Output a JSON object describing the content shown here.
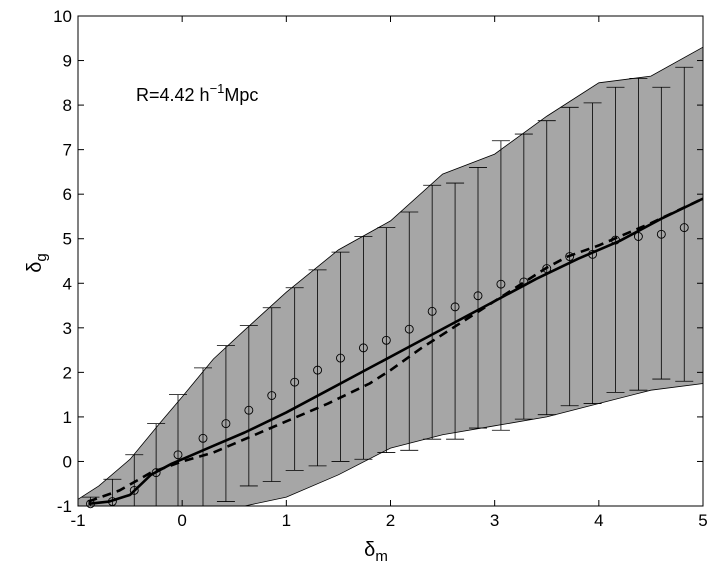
{
  "chart_data": {
    "type": "scatter",
    "xlim": [
      -1,
      5
    ],
    "ylim": [
      -1,
      10
    ],
    "xticks": [
      "-1",
      "0",
      "1",
      "2",
      "3",
      "4",
      "5"
    ],
    "yticks": [
      "-1",
      "0",
      "1",
      "2",
      "3",
      "4",
      "5",
      "6",
      "7",
      "8",
      "9",
      "10"
    ],
    "xlabel": {
      "main": "δ",
      "sub": "m"
    },
    "ylabel": {
      "main": "δ",
      "sub": "g"
    },
    "annotation": {
      "text": "R=4.42 h",
      "sup": "−1",
      "unit": "Mpc"
    },
    "grid": false,
    "colors": {
      "band": "#a6a6a6",
      "line": "#000000"
    },
    "points": {
      "x": [
        -0.88,
        -0.67,
        -0.46,
        -0.25,
        -0.04,
        0.2,
        0.42,
        0.64,
        0.86,
        1.08,
        1.3,
        1.52,
        1.74,
        1.96,
        2.18,
        2.4,
        2.62,
        2.84,
        3.06,
        3.28,
        3.5,
        3.72,
        3.94,
        4.16,
        4.38,
        4.6,
        4.82
      ],
      "y": [
        -0.95,
        -0.9,
        -0.65,
        -0.25,
        0.15,
        0.52,
        0.85,
        1.15,
        1.48,
        1.78,
        2.05,
        2.32,
        2.55,
        2.72,
        2.97,
        3.37,
        3.47,
        3.72,
        3.98,
        4.03,
        4.33,
        4.6,
        4.65,
        4.97,
        5.05,
        5.1,
        5.25
      ],
      "err_low": [
        -1.0,
        -1.0,
        -1.0,
        -1.0,
        -1.0,
        -1.0,
        -0.9,
        -0.55,
        -0.45,
        -0.2,
        -0.1,
        0.0,
        0.05,
        0.2,
        0.25,
        0.5,
        0.5,
        0.75,
        0.7,
        0.95,
        1.05,
        1.25,
        1.3,
        1.55,
        1.6,
        1.85,
        1.8
      ],
      "err_high": [
        -0.8,
        -0.4,
        0.15,
        0.85,
        1.5,
        2.1,
        2.6,
        3.05,
        3.45,
        3.9,
        4.3,
        4.7,
        5.05,
        5.25,
        5.6,
        6.2,
        6.25,
        6.6,
        7.2,
        7.35,
        7.65,
        7.95,
        8.05,
        8.4,
        8.6,
        8.4,
        8.85
      ]
    },
    "band": {
      "x": [
        -1,
        -0.8,
        -0.5,
        -0.2,
        0.0,
        0.3,
        0.6,
        1.0,
        1.5,
        2.0,
        2.5,
        3.0,
        3.5,
        4.0,
        4.5,
        5.0
      ],
      "low": [
        -1.0,
        -1.0,
        -1.0,
        -1.0,
        -1.0,
        -1.0,
        -1.0,
        -0.8,
        -0.3,
        0.3,
        0.6,
        0.8,
        1.0,
        1.3,
        1.6,
        1.75
      ],
      "high": [
        -0.85,
        -0.55,
        0.05,
        0.9,
        1.45,
        2.3,
        2.95,
        3.8,
        4.75,
        5.4,
        6.45,
        6.9,
        7.75,
        8.5,
        8.65,
        9.3
      ]
    },
    "series": [
      {
        "style": "solid",
        "x": [
          -0.9,
          -0.7,
          -0.5,
          -0.3,
          -0.1,
          0.1,
          0.3,
          0.6,
          1.0,
          1.4,
          1.8,
          2.2,
          2.6,
          3.0,
          3.4,
          3.8,
          4.2,
          4.6,
          5.0
        ],
        "y": [
          -0.95,
          -0.9,
          -0.75,
          -0.3,
          -0.05,
          0.15,
          0.35,
          0.65,
          1.1,
          1.6,
          2.1,
          2.6,
          3.1,
          3.6,
          4.1,
          4.55,
          4.95,
          5.45,
          5.9
        ]
      },
      {
        "style": "dashed",
        "x": [
          -0.9,
          -0.6,
          -0.3,
          0.0,
          0.3,
          0.6,
          1.0,
          1.4,
          1.8,
          2.0,
          2.3,
          2.6,
          3.0,
          3.3,
          3.5,
          3.7,
          4.0,
          4.5,
          5.0
        ],
        "y": [
          -0.9,
          -0.65,
          -0.25,
          0.0,
          0.2,
          0.5,
          0.9,
          1.3,
          1.75,
          2.05,
          2.55,
          3.0,
          3.6,
          4.05,
          4.35,
          4.6,
          4.85,
          5.35,
          5.9
        ]
      }
    ]
  }
}
